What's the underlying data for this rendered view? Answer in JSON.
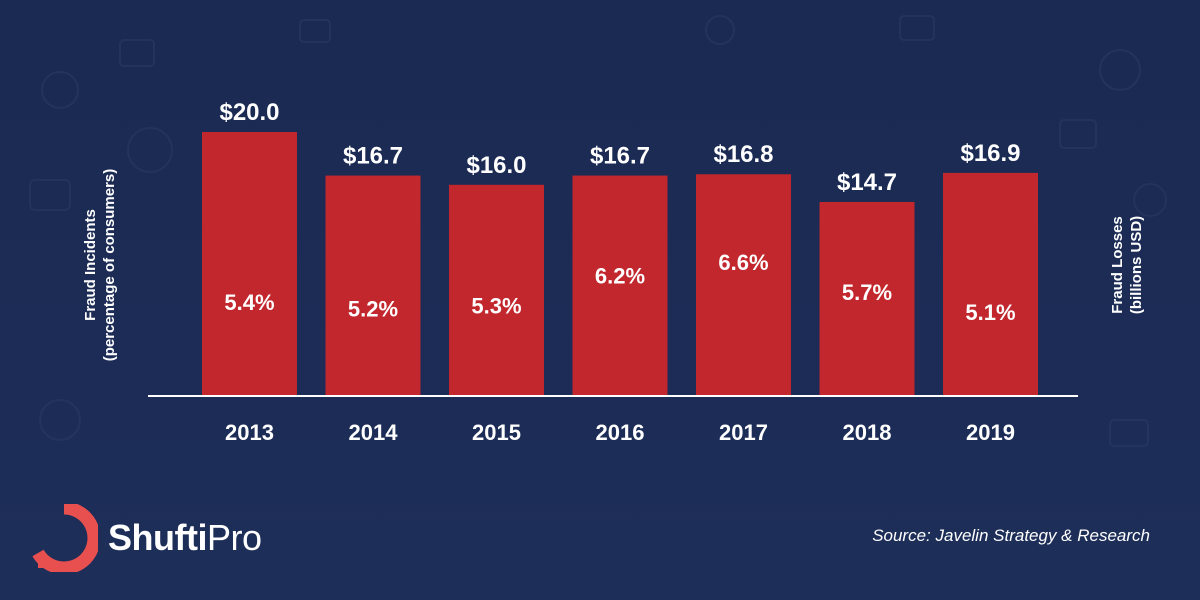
{
  "chart_data": {
    "type": "bar",
    "categories": [
      "2013",
      "2014",
      "2015",
      "2016",
      "2017",
      "2018",
      "2019"
    ],
    "values": [
      20.0,
      16.7,
      16.0,
      16.7,
      16.8,
      14.7,
      16.9
    ],
    "value_labels": [
      "$20.0",
      "$16.7",
      "$16.0",
      "$16.7",
      "$16.8",
      "$14.7",
      "$16.9"
    ],
    "secondary_values": [
      5.4,
      5.2,
      5.3,
      6.2,
      6.6,
      5.7,
      5.1
    ],
    "secondary_labels": [
      "5.4%",
      "5.2%",
      "5.3%",
      "6.2%",
      "6.6%",
      "5.7%",
      "5.1%"
    ],
    "ylabel_left": "Fraud Incidents",
    "ylabel_left_sub": "(percentage of consumers)",
    "ylabel_right": "Fraud Losses",
    "ylabel_right_sub": "(billions USD)",
    "ylim": [
      0,
      20
    ],
    "bar_color": "#c1272d",
    "axis_color": "#ffffff"
  },
  "brand": {
    "name_bold": "Shufti",
    "name_light": "Pro",
    "mark_color": "#e8504f"
  },
  "footer": {
    "source": "Source: Javelin Strategy & Research"
  },
  "colors": {
    "background": "#1b2b55",
    "text": "#ffffff"
  }
}
